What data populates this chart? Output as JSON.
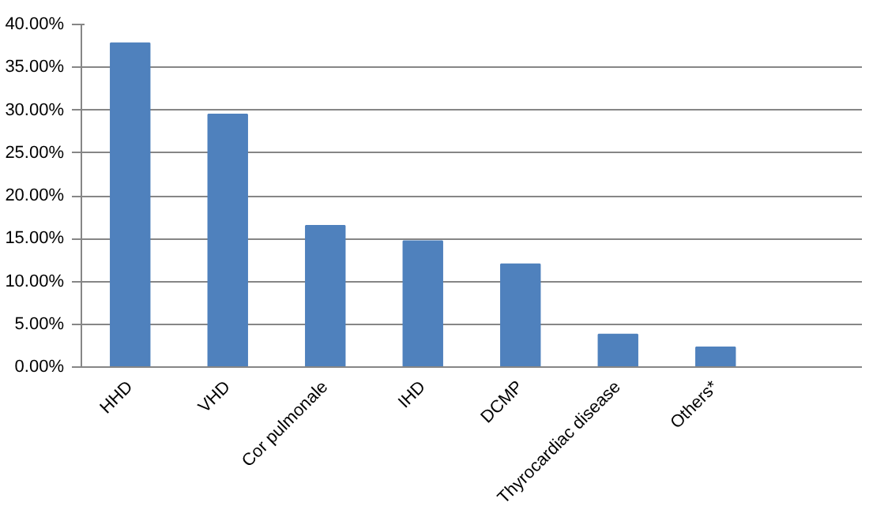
{
  "chart_data": {
    "type": "bar",
    "categories": [
      "HHD",
      "VHD",
      "Cor pulmonale",
      "IHD",
      "DCMP",
      "Thyrocardiac disease",
      "Others*",
      null
    ],
    "values": [
      37.8,
      29.5,
      16.5,
      14.7,
      12.0,
      3.8,
      2.3,
      null
    ],
    "color": "#4f81bd",
    "ylim": [
      0,
      40
    ],
    "yticks": [
      {
        "value": 0,
        "label": "0.00%"
      },
      {
        "value": 5,
        "label": "5.00%"
      },
      {
        "value": 10,
        "label": "10.00%"
      },
      {
        "value": 15,
        "label": "15.00%"
      },
      {
        "value": 20,
        "label": "20.00%"
      },
      {
        "value": 25,
        "label": "25.00%"
      },
      {
        "value": 30,
        "label": "30.00%"
      },
      {
        "value": 35,
        "label": "35.00%"
      },
      {
        "value": 40,
        "label": "40.00%"
      }
    ],
    "grid": "y"
  }
}
